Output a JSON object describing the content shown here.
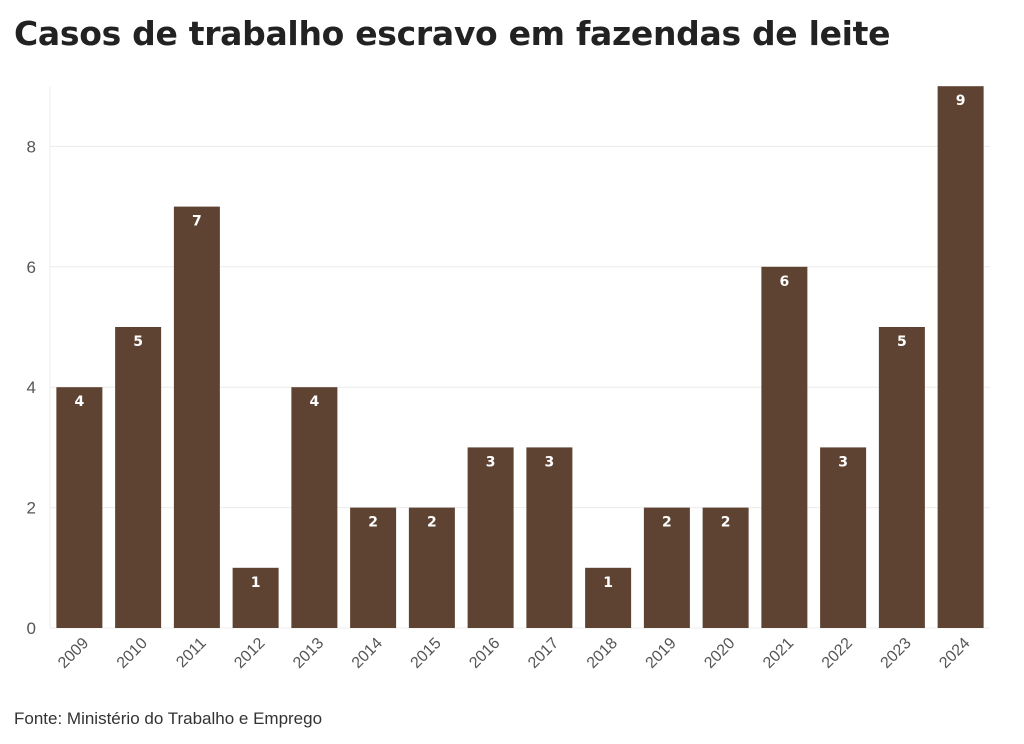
{
  "title": "Casos de trabalho escravo em fazendas de leite",
  "source": "Fonte: Ministério do Trabalho e Emprego",
  "colors": {
    "bar": "#5e4332",
    "grid": "#ececec",
    "axis_text": "#555555",
    "label_text": "#ffffff"
  },
  "chart_data": {
    "type": "bar",
    "title": "Casos de trabalho escravo em fazendas de leite",
    "xlabel": "",
    "ylabel": "",
    "categories": [
      "2009",
      "2010",
      "2011",
      "2012",
      "2013",
      "2014",
      "2015",
      "2016",
      "2017",
      "2018",
      "2019",
      "2020",
      "2021",
      "2022",
      "2023",
      "2024"
    ],
    "values": [
      4,
      5,
      7,
      1,
      4,
      2,
      2,
      3,
      3,
      1,
      2,
      2,
      6,
      3,
      5,
      9
    ],
    "yticks": [
      0,
      2,
      4,
      6,
      8
    ],
    "ylim": [
      0,
      9
    ],
    "grid": true,
    "legend": "none",
    "data_labels": true
  }
}
